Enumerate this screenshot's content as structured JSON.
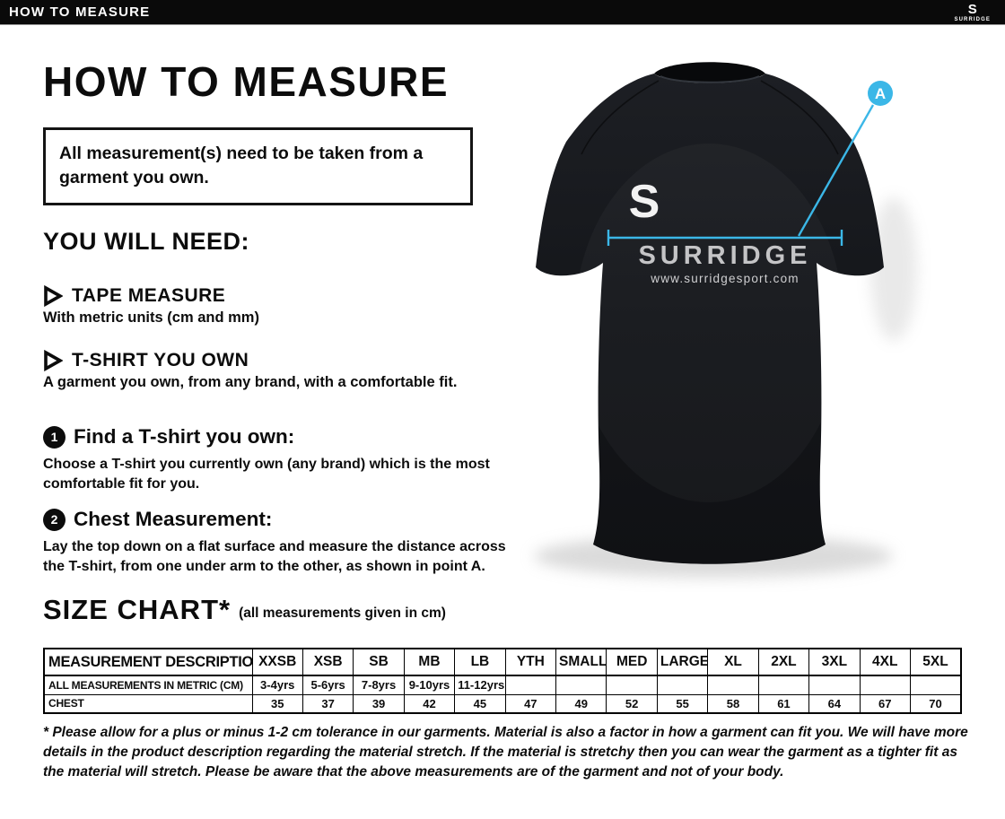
{
  "topbar": {
    "title": "HOW TO MEASURE",
    "brand": "SURRIDGE",
    "brand_s": "S"
  },
  "page": {
    "title": "HOW TO MEASURE",
    "notice": "All measurement(s) need to be taken from a garment you own.",
    "you_will_need": {
      "heading": "YOU WILL NEED:",
      "items": [
        {
          "title": "TAPE MEASURE",
          "description": "With metric units (cm and mm)"
        },
        {
          "title": "T-SHIRT YOU OWN",
          "description": "A garment you own, from any brand, with a comfortable fit."
        }
      ]
    },
    "steps": [
      {
        "number": "1",
        "title": "Find a T-shirt you own:",
        "description": "Choose a T-shirt you currently own (any brand) which is the most comfortable fit for you."
      },
      {
        "number": "2",
        "title": "Chest Measurement:",
        "description": "Lay the top down on a flat surface and measure the distance across the T-shirt, from one under arm to the other, as shown in point A."
      }
    ],
    "size_chart": {
      "title": "SIZE CHART*",
      "subtitle": "(all measurements given in cm)"
    },
    "footnote": "* Please allow for a plus or minus 1-2 cm tolerance in our garments. Material is also a factor in how a garment can fit you. We will have more details in the product description regarding the material stretch.  If the material is stretchy then you can wear the garment as a tighter fit as the material will stretch.  Please be aware that the above measurements are of the garment and not of your body."
  },
  "shirt": {
    "logo": "S",
    "brand": "SURRIDGE",
    "website": "www.surridgesport.com",
    "marker": "A",
    "accent_color": "#3bb7e7",
    "shirt_color": "#15171b"
  },
  "chart_data": {
    "type": "table",
    "title": "SIZE CHART*",
    "subtitle": "(all measurements given in cm)",
    "columns": [
      "MEASUREMENT DESCRIPTION",
      "XXSB",
      "XSB",
      "SB",
      "MB",
      "LB",
      "YTH",
      "SMALL",
      "MED",
      "LARGE",
      "XL",
      "2XL",
      "3XL",
      "4XL",
      "5XL"
    ],
    "rows": [
      {
        "label": "ALL MEASUREMENTS IN METRIC (CM)",
        "values": [
          "3-4yrs",
          "5-6yrs",
          "7-8yrs",
          "9-10yrs",
          "11-12yrs",
          "",
          "",
          "",
          "",
          "",
          "",
          "",
          "",
          ""
        ]
      },
      {
        "label": "CHEST",
        "values": [
          "35",
          "37",
          "39",
          "42",
          "45",
          "47",
          "49",
          "52",
          "55",
          "58",
          "61",
          "64",
          "67",
          "70"
        ]
      }
    ]
  }
}
